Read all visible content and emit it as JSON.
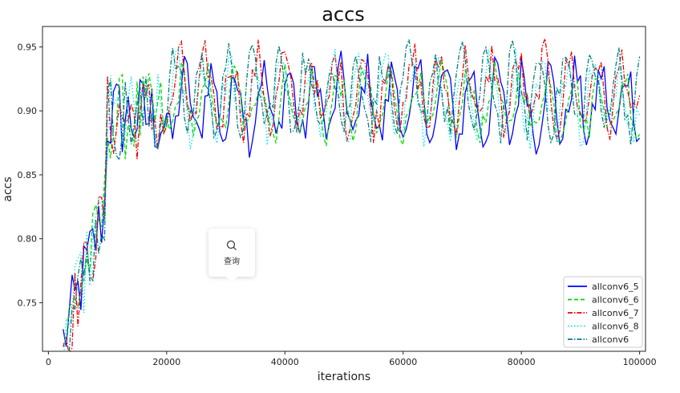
{
  "chart_data": {
    "type": "line",
    "title": "accs",
    "xlabel": "iterations",
    "ylabel": "accs",
    "xlim": [
      -1000,
      101000
    ],
    "ylim": [
      0.712,
      0.966
    ],
    "xticks": [
      0,
      20000,
      40000,
      60000,
      80000,
      100000
    ],
    "xtick_labels": [
      "0",
      "20000",
      "40000",
      "60000",
      "80000",
      "100000"
    ],
    "yticks": [
      0.75,
      0.8,
      0.85,
      0.9,
      0.95
    ],
    "ytick_labels": [
      "0.75",
      "0.80",
      "0.85",
      "0.90",
      "0.95"
    ],
    "legend_position": "lower-right",
    "x_start": 2500,
    "x_end": 100000,
    "x_step": 500,
    "series": [
      {
        "name": "allconv6_5",
        "color": "#0000ff",
        "style": "solid",
        "approx_plateau_range": [
          0.87,
          0.94
        ],
        "phase": 0.0
      },
      {
        "name": "allconv6_6",
        "color": "#00dd00",
        "style": "dashed",
        "approx_plateau_range": [
          0.875,
          0.935
        ],
        "phase": 0.6
      },
      {
        "name": "allconv6_7",
        "color": "#ee0000",
        "style": "dashdot",
        "approx_plateau_range": [
          0.88,
          0.95
        ],
        "phase": 1.2
      },
      {
        "name": "allconv6_8",
        "color": "#00e5ee",
        "style": "dotted",
        "approx_plateau_range": [
          0.875,
          0.945
        ],
        "phase": 1.8
      },
      {
        "name": "allconv6",
        "color": "#008080",
        "style": "dashdot",
        "approx_plateau_range": [
          0.88,
          0.95
        ],
        "phase": 2.4
      }
    ],
    "ramp_phase": {
      "x_range": [
        2500,
        10000
      ],
      "y_range": [
        0.712,
        0.87
      ]
    },
    "plateau_phase": {
      "x_range": [
        10000,
        100000
      ],
      "cycle_period": 4400
    }
  },
  "tooltip": {
    "label": "查询",
    "icon": "search-icon"
  }
}
